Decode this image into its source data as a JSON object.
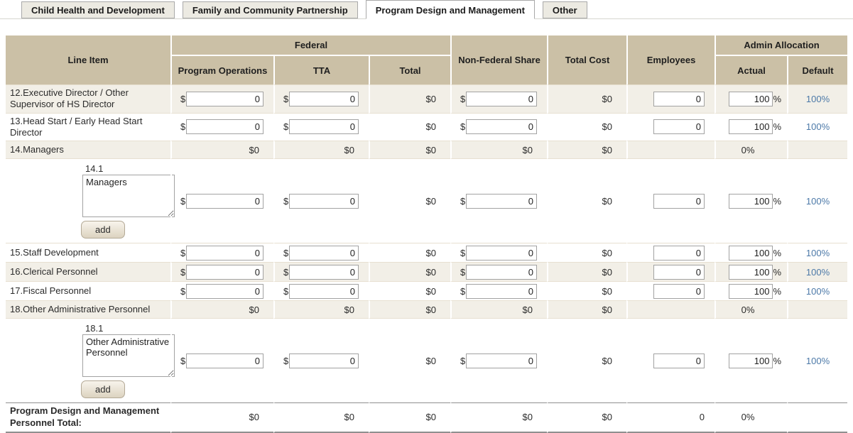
{
  "tabs": [
    {
      "label": "Child Health and Development",
      "active": false
    },
    {
      "label": "Family and Community Partnership",
      "active": false
    },
    {
      "label": "Program Design and Management",
      "active": true
    },
    {
      "label": "Other",
      "active": false
    }
  ],
  "symbols": {
    "dollar": "$",
    "percent": "%"
  },
  "table": {
    "headers": {
      "line_item": "Line Item",
      "federal": "Federal",
      "program_operations": "Program Operations",
      "tta": "TTA",
      "total": "Total",
      "non_federal_share": "Non-Federal Share",
      "total_cost": "Total Cost",
      "employees": "Employees",
      "admin_allocation": "Admin Allocation",
      "actual": "Actual",
      "default": "Default"
    },
    "rows": [
      {
        "type": "input",
        "shade": true,
        "label": "12.Executive Director / Other Supervisor of HS Director",
        "po": "0",
        "tta": "0",
        "total": "$0",
        "nfs": "0",
        "cost": "$0",
        "emp": "0",
        "actual": "100",
        "default_link": "100%"
      },
      {
        "type": "input",
        "shade": false,
        "label": "13.Head Start / Early Head Start Director",
        "po": "0",
        "tta": "0",
        "total": "$0",
        "nfs": "0",
        "cost": "$0",
        "emp": "0",
        "actual": "100",
        "default_link": "100%"
      },
      {
        "type": "summary",
        "shade": true,
        "label": "14.Managers",
        "po": "$0",
        "tta": "$0",
        "total": "$0",
        "nfs": "$0",
        "cost": "$0",
        "actual": "0%"
      },
      {
        "type": "sub",
        "shade": false,
        "number": "14.1",
        "textarea": "Managers",
        "add_label": "add",
        "po": "0",
        "tta": "0",
        "total": "$0",
        "nfs": "0",
        "cost": "$0",
        "emp": "0",
        "actual": "100",
        "default_link": "100%"
      },
      {
        "type": "input",
        "shade": false,
        "label": "15.Staff Development",
        "po": "0",
        "tta": "0",
        "total": "$0",
        "nfs": "0",
        "cost": "$0",
        "emp": "0",
        "actual": "100",
        "default_link": "100%"
      },
      {
        "type": "input",
        "shade": true,
        "label": "16.Clerical Personnel",
        "po": "0",
        "tta": "0",
        "total": "$0",
        "nfs": "0",
        "cost": "$0",
        "emp": "0",
        "actual": "100",
        "default_link": "100%"
      },
      {
        "type": "input",
        "shade": false,
        "label": "17.Fiscal Personnel",
        "po": "0",
        "tta": "0",
        "total": "$0",
        "nfs": "0",
        "cost": "$0",
        "emp": "0",
        "actual": "100",
        "default_link": "100%"
      },
      {
        "type": "summary",
        "shade": true,
        "label": "18.Other Administrative Personnel",
        "po": "$0",
        "tta": "$0",
        "total": "$0",
        "nfs": "$0",
        "cost": "$0",
        "actual": "0%"
      },
      {
        "type": "sub",
        "shade": false,
        "number": "18.1",
        "textarea": "Other Administrative Personnel",
        "add_label": "add",
        "po": "0",
        "tta": "0",
        "total": "$0",
        "nfs": "0",
        "cost": "$0",
        "emp": "0",
        "actual": "100",
        "default_link": "100%"
      },
      {
        "type": "total",
        "shade": false,
        "label": "Program Design and Management Personnel Total:",
        "po": "$0",
        "tta": "$0",
        "total": "$0",
        "nfs": "$0",
        "cost": "$0",
        "emp": "0",
        "actual": "0%"
      }
    ]
  }
}
